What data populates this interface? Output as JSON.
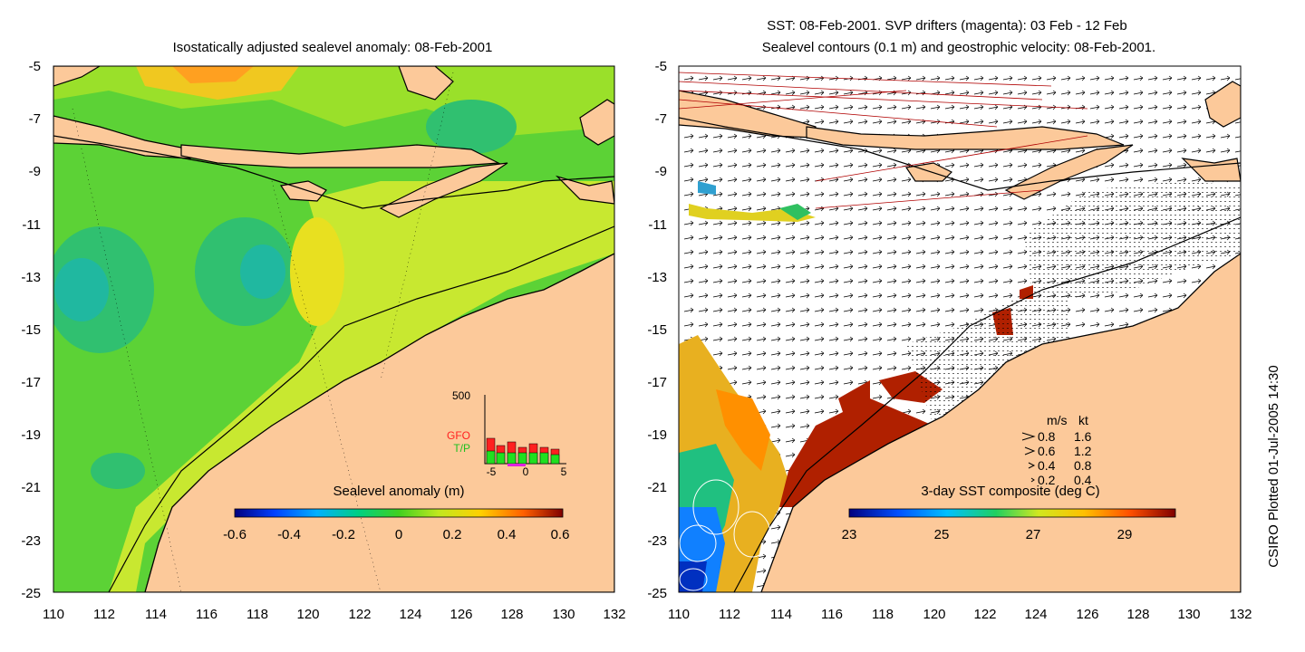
{
  "left_panel": {
    "title": "Isostatically adjusted sealevel anomaly: 08-Feb-2001",
    "y_ticks": [
      "-5",
      "-7",
      "-9",
      "-11",
      "-13",
      "-15",
      "-17",
      "-19",
      "-21",
      "-23",
      "-25"
    ],
    "x_ticks": [
      "110",
      "112",
      "114",
      "116",
      "118",
      "120",
      "122",
      "124",
      "126",
      "128",
      "130",
      "132"
    ],
    "colorbar": {
      "label": "Sealevel anomaly (m)",
      "ticks": [
        "-0.6",
        "-0.4",
        "-0.2",
        "0",
        "0.2",
        "0.4",
        "0.6"
      ]
    },
    "inset": {
      "y_max_label": "500",
      "series_labels": [
        "GFO",
        "T/P"
      ],
      "x_ticks": [
        "-5",
        "0",
        "5"
      ]
    }
  },
  "right_panel": {
    "title_line1": "SST: 08-Feb-2001. SVP drifters (magenta): 03 Feb - 12 Feb",
    "title_line2": "Sealevel contours (0.1 m) and geostrophic velocity: 08-Feb-2001.",
    "y_ticks": [
      "-5",
      "-7",
      "-9",
      "-11",
      "-13",
      "-15",
      "-17",
      "-19",
      "-21",
      "-23",
      "-25"
    ],
    "x_ticks": [
      "110",
      "112",
      "114",
      "116",
      "118",
      "120",
      "122",
      "124",
      "126",
      "128",
      "130",
      "132"
    ],
    "legend": {
      "header_ms": "m/s",
      "header_kt": "kt",
      "rows": [
        {
          "ms": "0.8",
          "kt": "1.6"
        },
        {
          "ms": "0.6",
          "kt": "1.2"
        },
        {
          "ms": "0.4",
          "kt": "0.8"
        },
        {
          "ms": "0.2",
          "kt": "0.4"
        }
      ]
    },
    "colorbar": {
      "label": "3-day SST composite (deg C)",
      "ticks": [
        "23",
        "25",
        "27",
        "29"
      ]
    }
  },
  "credit": "CSIRO Plotted 01-Jul-2005 14:30",
  "colors": {
    "land": "#fcc99a",
    "ocean_green": "#60d030",
    "ocean_teal": "#30c070",
    "ocean_yellow": "#c8e830",
    "sst_red": "#b02000"
  }
}
